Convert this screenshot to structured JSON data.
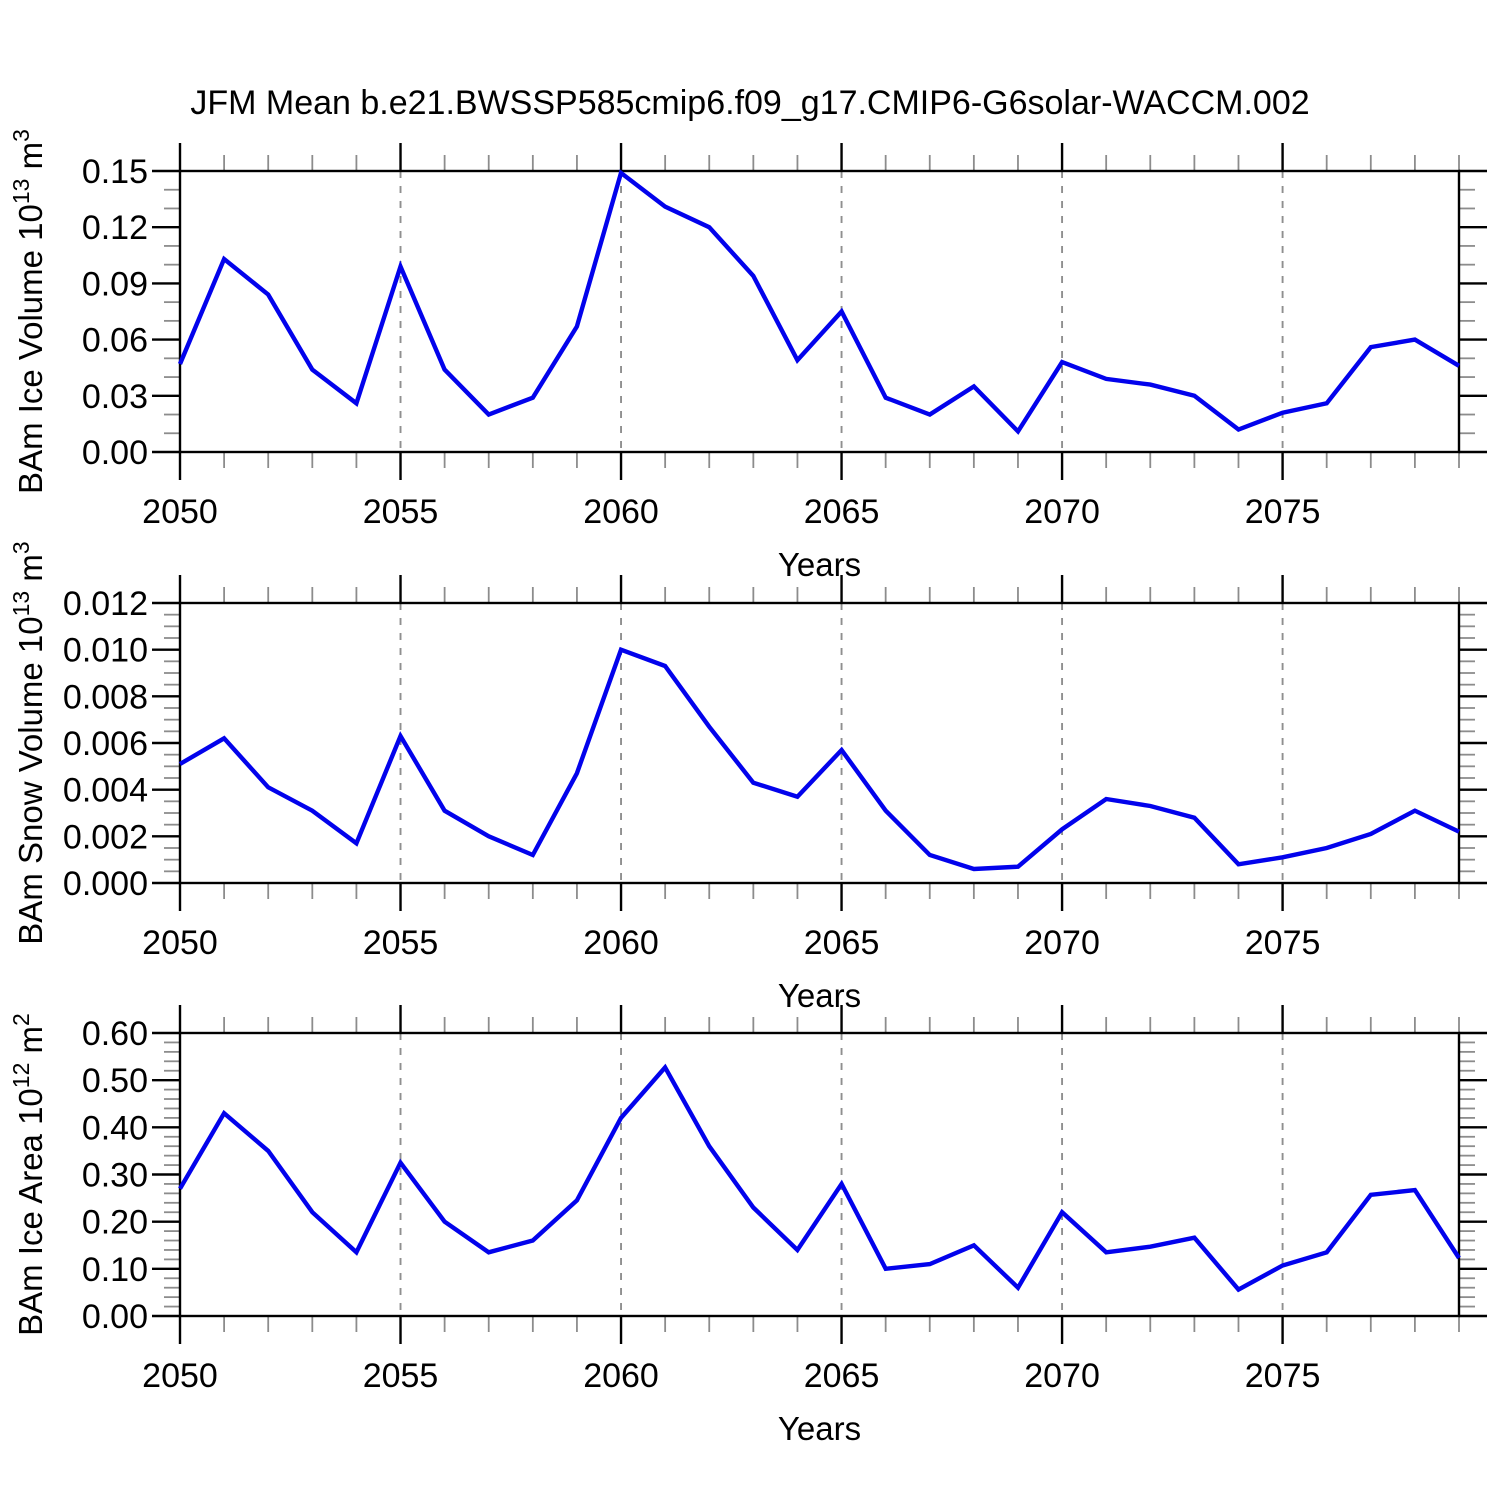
{
  "title": "JFM Mean b.e21.BWSSP585cmip6.f09_g17.CMIP6-G6solar-WACCM.002",
  "colors": {
    "line": "#0202EC",
    "grid": "#8F8F8F",
    "axis": "#000000",
    "minor_tick": "#8C8C8C",
    "text": "#000000",
    "background": "#FFFFFF"
  },
  "x_axis": {
    "label": "Years",
    "start": 2050,
    "end": 2079,
    "major_step": 5,
    "minor_step": 1,
    "major_ticks": [
      2050,
      2055,
      2060,
      2065,
      2070,
      2075
    ],
    "major_labels": [
      "2050",
      "2055",
      "2060",
      "2065",
      "2070",
      "2075"
    ]
  },
  "chart_data": [
    {
      "id": "ice-volume",
      "type": "line",
      "ylabel_plain": "BAm Ice Volume 10^13 m^3",
      "ylabel_parts": [
        {
          "text": "BAm Ice Volume 10"
        },
        {
          "text": "13",
          "sup": true
        },
        {
          "text": " m"
        },
        {
          "text": "3",
          "sup": true
        }
      ],
      "xlabel": "Years",
      "ylim": [
        0,
        0.15
      ],
      "ytick_step": 0.03,
      "yminor_step": 0.01,
      "ytick_labels": [
        "0.00",
        "0.03",
        "0.06",
        "0.09",
        "0.12",
        "0.15"
      ],
      "grid": "dashed-vertical-at-major-x",
      "legend": "none",
      "x": [
        2050,
        2051,
        2052,
        2053,
        2054,
        2055,
        2056,
        2057,
        2058,
        2059,
        2060,
        2061,
        2062,
        2063,
        2064,
        2065,
        2066,
        2067,
        2068,
        2069,
        2070,
        2071,
        2072,
        2073,
        2074,
        2075,
        2076,
        2077,
        2078,
        2079
      ],
      "values": [
        0.047,
        0.103,
        0.084,
        0.044,
        0.026,
        0.099,
        0.044,
        0.02,
        0.029,
        0.067,
        0.149,
        0.131,
        0.12,
        0.094,
        0.049,
        0.075,
        0.029,
        0.02,
        0.035,
        0.011,
        0.048,
        0.039,
        0.036,
        0.03,
        0.012,
        0.021,
        0.026,
        0.056,
        0.06,
        0.046
      ]
    },
    {
      "id": "snow-volume",
      "type": "line",
      "ylabel_plain": "BAm Snow Volume 10^13 m^3",
      "ylabel_parts": [
        {
          "text": "BAm Snow Volume 10"
        },
        {
          "text": "13",
          "sup": true
        },
        {
          "text": " m"
        },
        {
          "text": "3",
          "sup": true
        }
      ],
      "xlabel": "Years",
      "ylim": [
        0,
        0.012
      ],
      "ytick_step": 0.002,
      "yminor_step": 0.0005,
      "ytick_labels": [
        "0.000",
        "0.002",
        "0.004",
        "0.006",
        "0.008",
        "0.010",
        "0.012"
      ],
      "grid": "dashed-vertical-at-major-x",
      "legend": "none",
      "x": [
        2050,
        2051,
        2052,
        2053,
        2054,
        2055,
        2056,
        2057,
        2058,
        2059,
        2060,
        2061,
        2062,
        2063,
        2064,
        2065,
        2066,
        2067,
        2068,
        2069,
        2070,
        2071,
        2072,
        2073,
        2074,
        2075,
        2076,
        2077,
        2078,
        2079
      ],
      "values": [
        0.0051,
        0.0062,
        0.0041,
        0.0031,
        0.0017,
        0.0063,
        0.0031,
        0.002,
        0.0012,
        0.0047,
        0.01,
        0.0093,
        0.0067,
        0.0043,
        0.0037,
        0.0057,
        0.0031,
        0.0012,
        0.0006,
        0.0007,
        0.0023,
        0.0036,
        0.0033,
        0.0028,
        0.0008,
        0.0011,
        0.0015,
        0.0021,
        0.0031,
        0.0022
      ]
    },
    {
      "id": "ice-area",
      "type": "line",
      "ylabel_plain": "BAm Ice Area 10^12 m^2",
      "ylabel_parts": [
        {
          "text": "BAm Ice Area 10"
        },
        {
          "text": "12",
          "sup": true
        },
        {
          "text": " m"
        },
        {
          "text": "2",
          "sup": true
        }
      ],
      "xlabel": "Years",
      "ylim": [
        0,
        0.6
      ],
      "ytick_step": 0.1,
      "yminor_step": 0.02,
      "ytick_labels": [
        "0.00",
        "0.10",
        "0.20",
        "0.30",
        "0.40",
        "0.50",
        "0.60"
      ],
      "grid": "dashed-vertical-at-major-x",
      "legend": "none",
      "x": [
        2050,
        2051,
        2052,
        2053,
        2054,
        2055,
        2056,
        2057,
        2058,
        2059,
        2060,
        2061,
        2062,
        2063,
        2064,
        2065,
        2066,
        2067,
        2068,
        2069,
        2070,
        2071,
        2072,
        2073,
        2074,
        2075,
        2076,
        2077,
        2078,
        2079
      ],
      "values": [
        0.27,
        0.43,
        0.35,
        0.22,
        0.135,
        0.325,
        0.2,
        0.135,
        0.16,
        0.245,
        0.42,
        0.527,
        0.36,
        0.23,
        0.14,
        0.28,
        0.1,
        0.11,
        0.15,
        0.06,
        0.22,
        0.135,
        0.147,
        0.166,
        0.056,
        0.107,
        0.135,
        0.257,
        0.267,
        0.123
      ]
    }
  ]
}
